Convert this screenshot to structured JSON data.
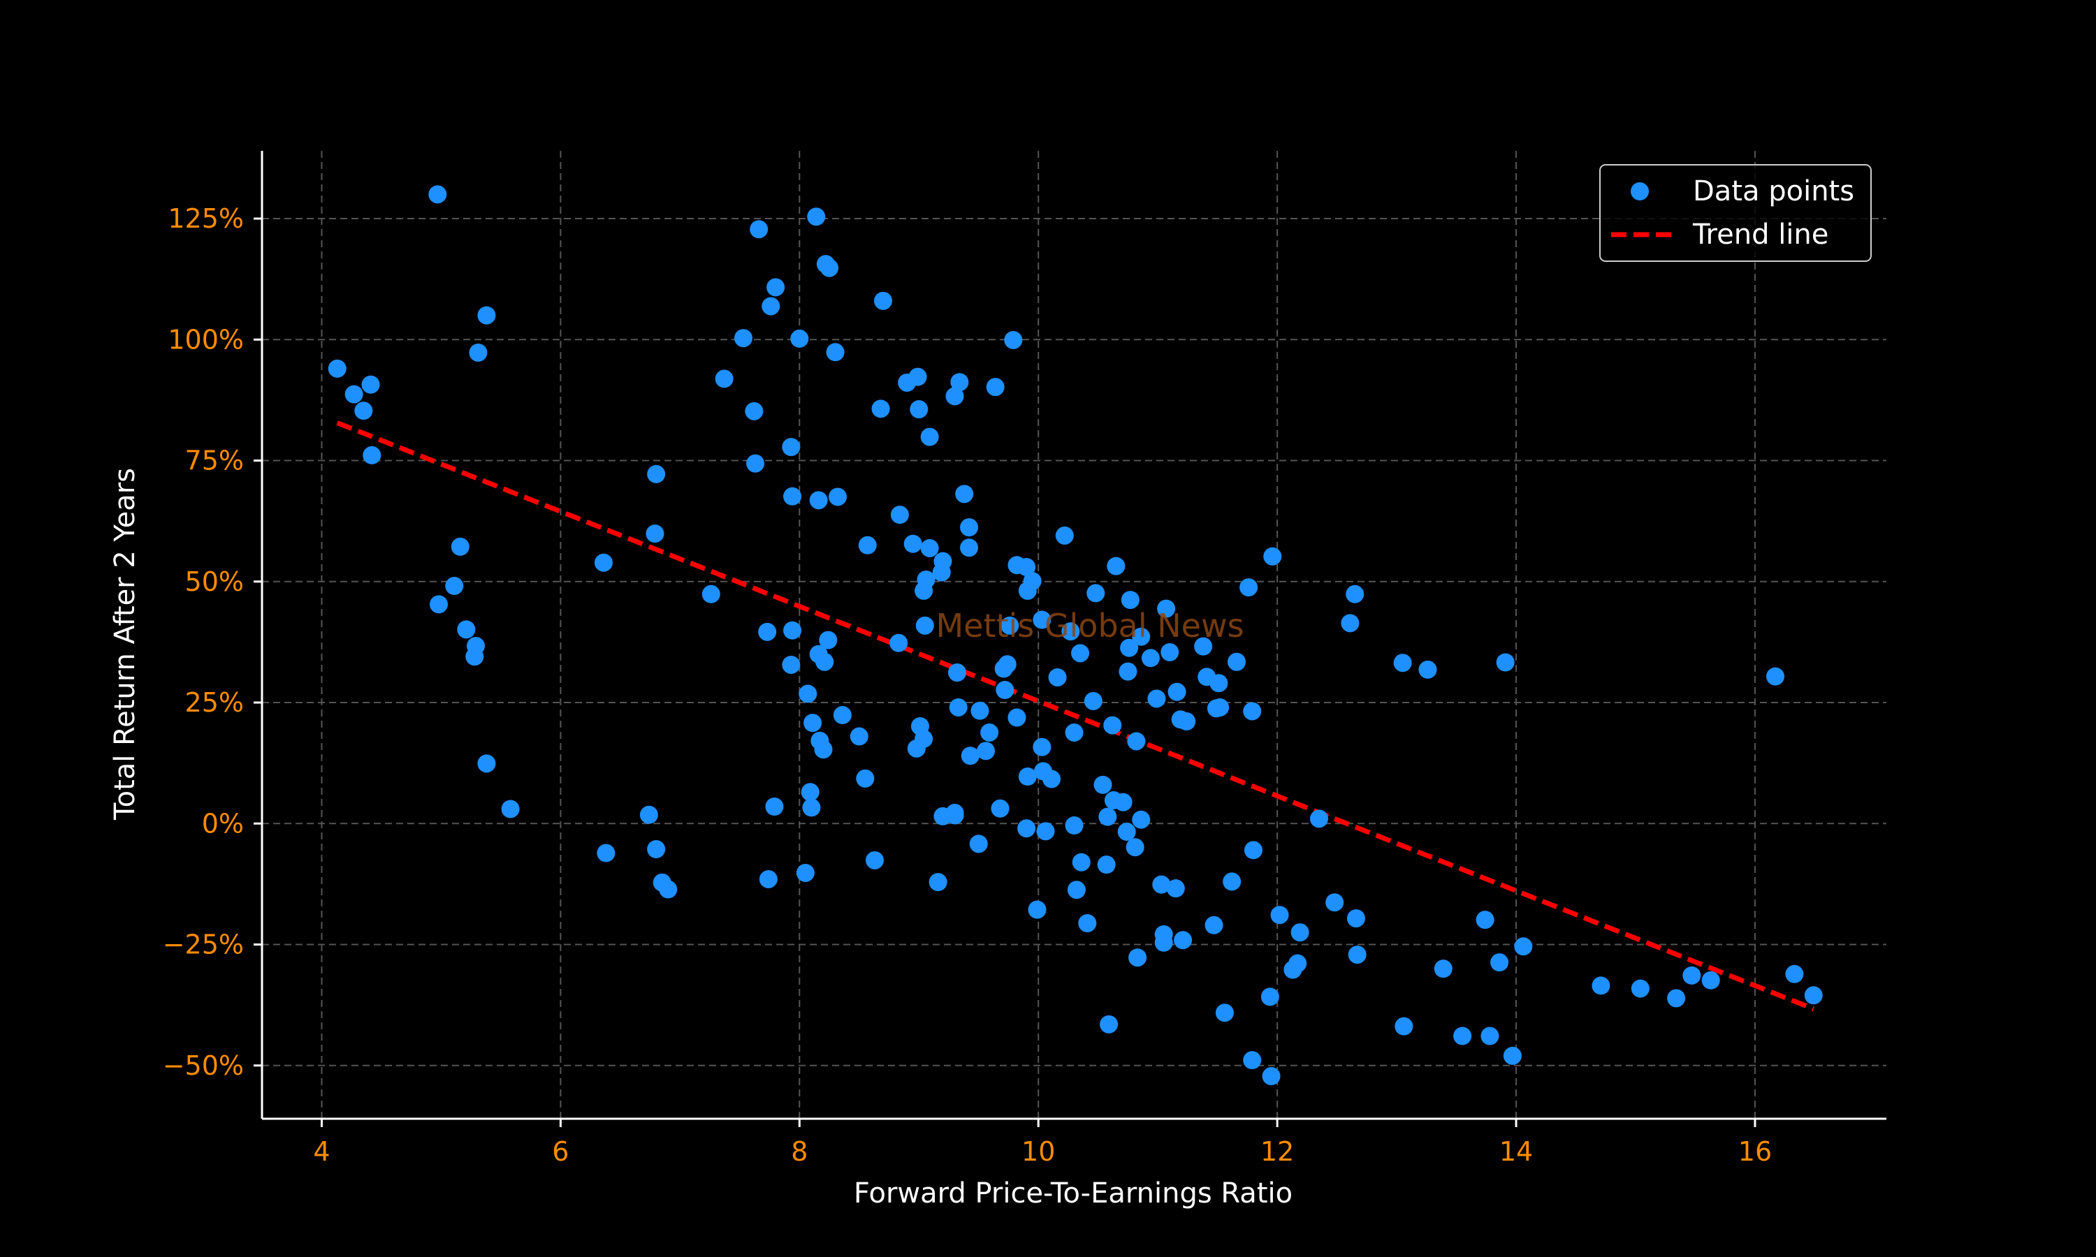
{
  "colors": {
    "background": "#000000",
    "axes": "#FFFFFF",
    "grid": "#555555",
    "tick_labels": "#FF8C00",
    "points": "#1E90FF",
    "trend": "#FF0000",
    "watermark": "#8B4513"
  },
  "watermark": "Mettis Global News",
  "chart_data": {
    "type": "scatter",
    "xlabel": "Forward Price-To-Earnings Ratio",
    "ylabel": "Total Return After 2 Years",
    "xlim": [
      3.5,
      17.1
    ],
    "ylim": [
      -61,
      139
    ],
    "x_ticks": [
      4,
      6,
      8,
      10,
      12,
      14,
      16
    ],
    "x_tick_labels": [
      "4",
      "6",
      "8",
      "10",
      "12",
      "14",
      "16"
    ],
    "y_ticks": [
      -50,
      -25,
      0,
      25,
      50,
      75,
      100,
      125
    ],
    "y_tick_labels": [
      "−50%",
      "−25%",
      "0%",
      "25%",
      "50%",
      "75%",
      "100%",
      "125%"
    ],
    "grid": true,
    "grid_style": "dashed",
    "legend_placement": "top-right",
    "series": [
      {
        "name": "Data points",
        "kind": "scatter",
        "points": [
          [
            4.13,
            94.0
          ],
          [
            4.27,
            88.7
          ],
          [
            4.35,
            85.3
          ],
          [
            4.41,
            90.7
          ],
          [
            4.42,
            76.1
          ],
          [
            4.97,
            130.0
          ],
          [
            4.98,
            45.3
          ],
          [
            5.11,
            49.1
          ],
          [
            5.16,
            57.2
          ],
          [
            5.21,
            40.1
          ],
          [
            5.28,
            34.5
          ],
          [
            5.29,
            36.7
          ],
          [
            5.31,
            97.3
          ],
          [
            5.38,
            105.0
          ],
          [
            5.38,
            12.4
          ],
          [
            5.58,
            3.0
          ],
          [
            6.36,
            53.9
          ],
          [
            6.38,
            -6.1
          ],
          [
            6.74,
            1.8
          ],
          [
            6.79,
            59.9
          ],
          [
            6.8,
            72.2
          ],
          [
            6.8,
            -5.3
          ],
          [
            6.85,
            -12.2
          ],
          [
            6.9,
            -13.6
          ],
          [
            7.26,
            47.4
          ],
          [
            7.37,
            91.9
          ],
          [
            7.53,
            100.3
          ],
          [
            7.62,
            85.2
          ],
          [
            7.63,
            74.4
          ],
          [
            7.66,
            122.8
          ],
          [
            7.73,
            39.6
          ],
          [
            7.74,
            -11.5
          ],
          [
            7.76,
            106.9
          ],
          [
            7.79,
            3.5
          ],
          [
            7.8,
            110.8
          ],
          [
            7.93,
            77.8
          ],
          [
            7.93,
            32.8
          ],
          [
            7.94,
            67.6
          ],
          [
            7.94,
            39.9
          ],
          [
            8.0,
            100.2
          ],
          [
            8.05,
            -10.2
          ],
          [
            8.07,
            26.8
          ],
          [
            8.09,
            6.5
          ],
          [
            8.1,
            3.3
          ],
          [
            8.11,
            20.8
          ],
          [
            8.14,
            125.4
          ],
          [
            8.16,
            35.0
          ],
          [
            8.16,
            66.8
          ],
          [
            8.17,
            17.1
          ],
          [
            8.2,
            15.3
          ],
          [
            8.21,
            33.4
          ],
          [
            8.22,
            115.6
          ],
          [
            8.24,
            37.9
          ],
          [
            8.25,
            114.8
          ],
          [
            8.3,
            97.4
          ],
          [
            8.32,
            67.5
          ],
          [
            8.36,
            22.4
          ],
          [
            8.5,
            18.0
          ],
          [
            8.55,
            9.3
          ],
          [
            8.57,
            57.5
          ],
          [
            8.63,
            -7.6
          ],
          [
            8.68,
            85.7
          ],
          [
            8.7,
            108.0
          ],
          [
            8.83,
            37.3
          ],
          [
            8.84,
            63.8
          ],
          [
            8.9,
            91.1
          ],
          [
            8.95,
            57.8
          ],
          [
            8.98,
            15.5
          ],
          [
            8.99,
            92.3
          ],
          [
            9.0,
            85.6
          ],
          [
            9.01,
            20.1
          ],
          [
            9.04,
            17.5
          ],
          [
            9.04,
            48.1
          ],
          [
            9.05,
            40.9
          ],
          [
            9.06,
            50.4
          ],
          [
            9.09,
            79.9
          ],
          [
            9.09,
            56.9
          ],
          [
            9.16,
            -12.1
          ],
          [
            9.19,
            51.9
          ],
          [
            9.2,
            1.5
          ],
          [
            9.2,
            54.2
          ],
          [
            9.3,
            88.3
          ],
          [
            9.3,
            2.2
          ],
          [
            9.3,
            1.7
          ],
          [
            9.32,
            31.2
          ],
          [
            9.33,
            24.0
          ],
          [
            9.34,
            91.2
          ],
          [
            9.38,
            68.1
          ],
          [
            9.42,
            61.2
          ],
          [
            9.42,
            57.0
          ],
          [
            9.43,
            14.0
          ],
          [
            9.5,
            -4.2
          ],
          [
            9.51,
            23.3
          ],
          [
            9.56,
            15.0
          ],
          [
            9.59,
            18.8
          ],
          [
            9.64,
            90.2
          ],
          [
            9.68,
            3.1
          ],
          [
            9.71,
            32.0
          ],
          [
            9.72,
            27.6
          ],
          [
            9.74,
            32.9
          ],
          [
            9.76,
            40.9
          ],
          [
            9.79,
            99.9
          ],
          [
            9.82,
            53.4
          ],
          [
            9.82,
            21.9
          ],
          [
            9.9,
            53.0
          ],
          [
            9.9,
            -1.0
          ],
          [
            9.91,
            9.7
          ],
          [
            9.91,
            48.1
          ],
          [
            9.95,
            50.1
          ],
          [
            9.99,
            -17.8
          ],
          [
            10.03,
            42.1
          ],
          [
            10.03,
            15.8
          ],
          [
            10.04,
            10.8
          ],
          [
            10.06,
            -1.6
          ],
          [
            10.11,
            9.2
          ],
          [
            10.16,
            30.2
          ],
          [
            10.22,
            59.5
          ],
          [
            10.27,
            39.7
          ],
          [
            10.3,
            -0.4
          ],
          [
            10.3,
            18.8
          ],
          [
            10.32,
            -13.7
          ],
          [
            10.35,
            35.2
          ],
          [
            10.36,
            -8.0
          ],
          [
            10.41,
            -20.6
          ],
          [
            10.46,
            25.3
          ],
          [
            10.48,
            47.6
          ],
          [
            10.54,
            8.0
          ],
          [
            10.57,
            -8.5
          ],
          [
            10.58,
            1.4
          ],
          [
            10.59,
            -41.5
          ],
          [
            10.62,
            20.3
          ],
          [
            10.63,
            4.8
          ],
          [
            10.65,
            53.2
          ],
          [
            10.71,
            4.4
          ],
          [
            10.74,
            -1.7
          ],
          [
            10.75,
            31.4
          ],
          [
            10.76,
            36.3
          ],
          [
            10.77,
            46.2
          ],
          [
            10.81,
            -4.9
          ],
          [
            10.82,
            17.0
          ],
          [
            10.83,
            -27.7
          ],
          [
            10.86,
            38.6
          ],
          [
            10.86,
            0.8
          ],
          [
            10.94,
            34.2
          ],
          [
            10.99,
            25.8
          ],
          [
            11.03,
            -12.6
          ],
          [
            11.05,
            -22.9
          ],
          [
            11.05,
            -24.6
          ],
          [
            11.07,
            44.4
          ],
          [
            11.1,
            35.4
          ],
          [
            11.15,
            -13.4
          ],
          [
            11.16,
            27.2
          ],
          [
            11.19,
            21.5
          ],
          [
            11.21,
            -24.1
          ],
          [
            11.24,
            21.1
          ],
          [
            11.38,
            36.6
          ],
          [
            11.41,
            30.3
          ],
          [
            11.47,
            -21.0
          ],
          [
            11.49,
            23.8
          ],
          [
            11.51,
            29.0
          ],
          [
            11.52,
            24.0
          ],
          [
            11.56,
            -39.1
          ],
          [
            11.62,
            -12.0
          ],
          [
            11.66,
            33.4
          ],
          [
            11.76,
            48.8
          ],
          [
            11.79,
            23.2
          ],
          [
            11.79,
            -48.9
          ],
          [
            11.8,
            -5.5
          ],
          [
            11.94,
            -35.8
          ],
          [
            11.95,
            -52.2
          ],
          [
            11.96,
            55.2
          ],
          [
            12.02,
            -18.9
          ],
          [
            12.13,
            -30.2
          ],
          [
            12.17,
            -28.9
          ],
          [
            12.19,
            -22.5
          ],
          [
            12.35,
            1.0
          ],
          [
            12.48,
            -16.3
          ],
          [
            12.61,
            41.4
          ],
          [
            12.65,
            47.4
          ],
          [
            12.66,
            -19.6
          ],
          [
            12.67,
            -27.1
          ],
          [
            13.05,
            33.2
          ],
          [
            13.06,
            -41.9
          ],
          [
            13.26,
            31.8
          ],
          [
            13.39,
            -30.0
          ],
          [
            13.55,
            -43.9
          ],
          [
            13.74,
            -19.9
          ],
          [
            13.78,
            -43.9
          ],
          [
            13.86,
            -28.7
          ],
          [
            13.91,
            33.3
          ],
          [
            13.97,
            -48.0
          ],
          [
            14.06,
            -25.4
          ],
          [
            14.71,
            -33.5
          ],
          [
            15.04,
            -34.1
          ],
          [
            15.34,
            -36.1
          ],
          [
            15.47,
            -31.4
          ],
          [
            15.63,
            -32.4
          ],
          [
            16.17,
            30.4
          ],
          [
            16.33,
            -31.1
          ],
          [
            16.49,
            -35.5
          ]
        ]
      },
      {
        "name": "Trend line",
        "kind": "line",
        "style": "dashed",
        "points": [
          [
            4.13,
            82.8
          ],
          [
            16.49,
            -38.3
          ]
        ]
      }
    ]
  }
}
